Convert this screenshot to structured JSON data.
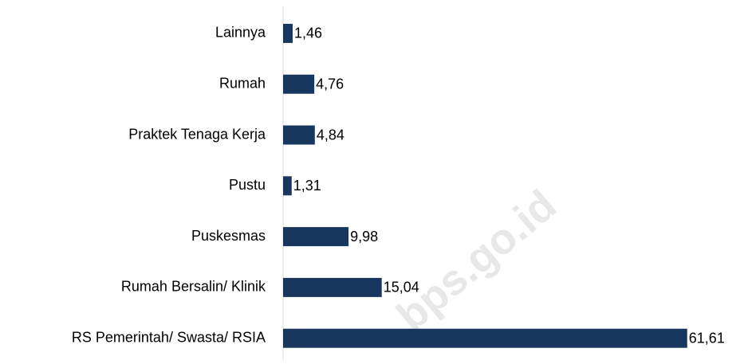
{
  "chart_data": {
    "type": "barh",
    "categories": [
      "Lainnya",
      "Rumah",
      "Praktek Tenaga Kerja",
      "Pustu",
      "Puskesmas",
      "Rumah Bersalin/ Klinik",
      "RS Pemerintah/ Swasta/ RSIA"
    ],
    "values": [
      1.46,
      4.76,
      4.84,
      1.31,
      9.98,
      15.04,
      61.61
    ],
    "value_labels": [
      "1,46",
      "4,76",
      "4,84",
      "1,31",
      "9,98",
      "15,04",
      "61,61"
    ],
    "color": "#17375e",
    "xlim": [
      0,
      62
    ],
    "watermark": "bps.go.id"
  }
}
